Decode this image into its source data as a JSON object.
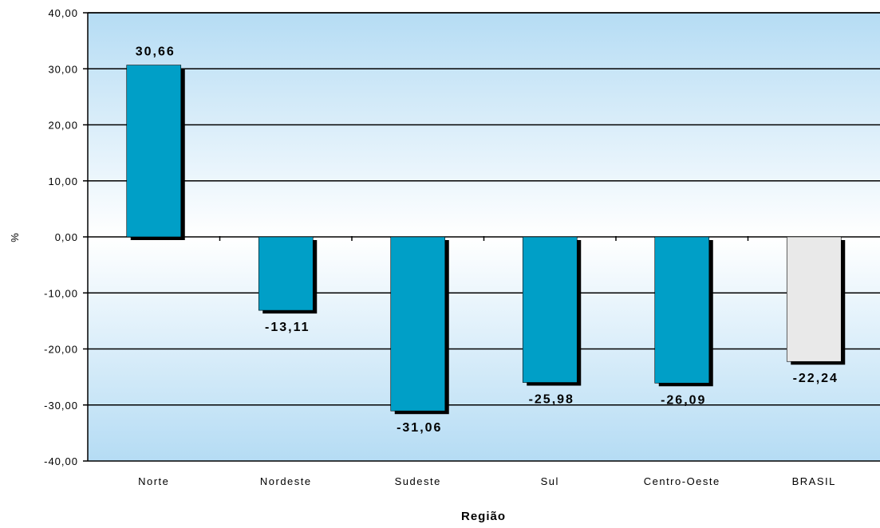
{
  "chart_data": {
    "type": "bar",
    "categories": [
      "Norte",
      "Nordeste",
      "Sudeste",
      "Sul",
      "Centro-Oeste",
      "BRASIL"
    ],
    "values": [
      30.66,
      -13.11,
      -31.06,
      -25.98,
      -26.09,
      -22.24
    ],
    "data_labels": [
      "30,66",
      "-13,11",
      "-31,06",
      "-25,98",
      "-26,09",
      "-22,24"
    ],
    "xlabel": "Região",
    "ylabel": "%",
    "ylim": [
      -40,
      40
    ],
    "yticks": [
      40,
      30,
      20,
      10,
      0,
      -10,
      -20,
      -30,
      -40
    ],
    "ytick_labels": [
      "40,00",
      "30,00",
      "20,00",
      "10,00",
      "0,00",
      "-10,00",
      "-20,00",
      "-30,00",
      "-40,00"
    ],
    "grid": true,
    "colors": {
      "bar": "#009fc7",
      "highlight_bar": "#e9e9e9",
      "shadow": "#000000",
      "plot_bg_edge": "#b5dcf4",
      "plot_bg_center": "#ffffff"
    },
    "highlight_category": "BRASIL"
  }
}
